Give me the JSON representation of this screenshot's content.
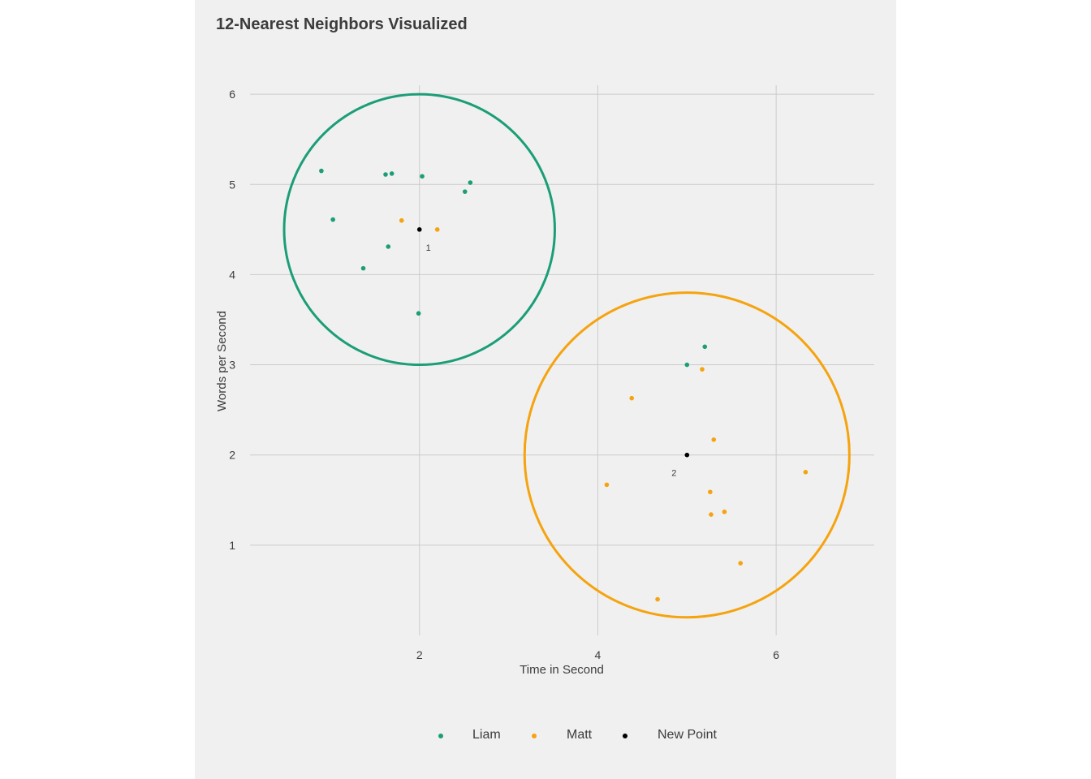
{
  "chart_data": {
    "type": "scatter",
    "title": "12-Nearest Neighbors Visualized",
    "xlabel": "Time in Second",
    "ylabel": "Words per Second",
    "xlim": [
      0.1,
      7.1
    ],
    "ylim": [
      0.0,
      6.1
    ],
    "x_ticks": [
      2,
      4,
      6
    ],
    "y_ticks": [
      1,
      2,
      3,
      4,
      5,
      6
    ],
    "grid": true,
    "legend_position": "bottom",
    "colors": {
      "Liam": "#1b9e77",
      "Matt": "#f5a30f",
      "New Point": "#000000"
    },
    "series": [
      {
        "name": "Liam",
        "color": "#1b9e77",
        "points": [
          {
            "x": 0.9,
            "y": 5.15
          },
          {
            "x": 1.03,
            "y": 4.61
          },
          {
            "x": 1.37,
            "y": 4.07
          },
          {
            "x": 1.62,
            "y": 5.11
          },
          {
            "x": 1.65,
            "y": 4.31
          },
          {
            "x": 1.69,
            "y": 5.12
          },
          {
            "x": 2.03,
            "y": 5.09
          },
          {
            "x": 1.99,
            "y": 3.57
          },
          {
            "x": 2.51,
            "y": 4.92
          },
          {
            "x": 2.57,
            "y": 5.02
          },
          {
            "x": 5.0,
            "y": 3.0
          },
          {
            "x": 5.2,
            "y": 3.2
          }
        ]
      },
      {
        "name": "Matt",
        "color": "#f5a30f",
        "points": [
          {
            "x": 1.8,
            "y": 4.6
          },
          {
            "x": 2.2,
            "y": 4.5
          },
          {
            "x": 4.38,
            "y": 2.63
          },
          {
            "x": 4.1,
            "y": 1.67
          },
          {
            "x": 4.67,
            "y": 0.4
          },
          {
            "x": 5.17,
            "y": 2.95
          },
          {
            "x": 5.3,
            "y": 2.17
          },
          {
            "x": 5.26,
            "y": 1.59
          },
          {
            "x": 5.27,
            "y": 1.34
          },
          {
            "x": 5.42,
            "y": 1.37
          },
          {
            "x": 5.6,
            "y": 0.8
          },
          {
            "x": 6.33,
            "y": 1.81
          }
        ]
      },
      {
        "name": "New Point",
        "color": "#000000",
        "points": [
          {
            "x": 2.0,
            "y": 4.5,
            "label": "1"
          },
          {
            "x": 5.0,
            "y": 2.0,
            "label": "2"
          }
        ]
      }
    ],
    "neighborhoods": [
      {
        "center_x": 2.0,
        "center_y": 4.5,
        "radius_y": 1.5,
        "color": "#1b9e77"
      },
      {
        "center_x": 5.0,
        "center_y": 2.0,
        "radius_y": 1.8,
        "color": "#f5a30f"
      }
    ]
  }
}
